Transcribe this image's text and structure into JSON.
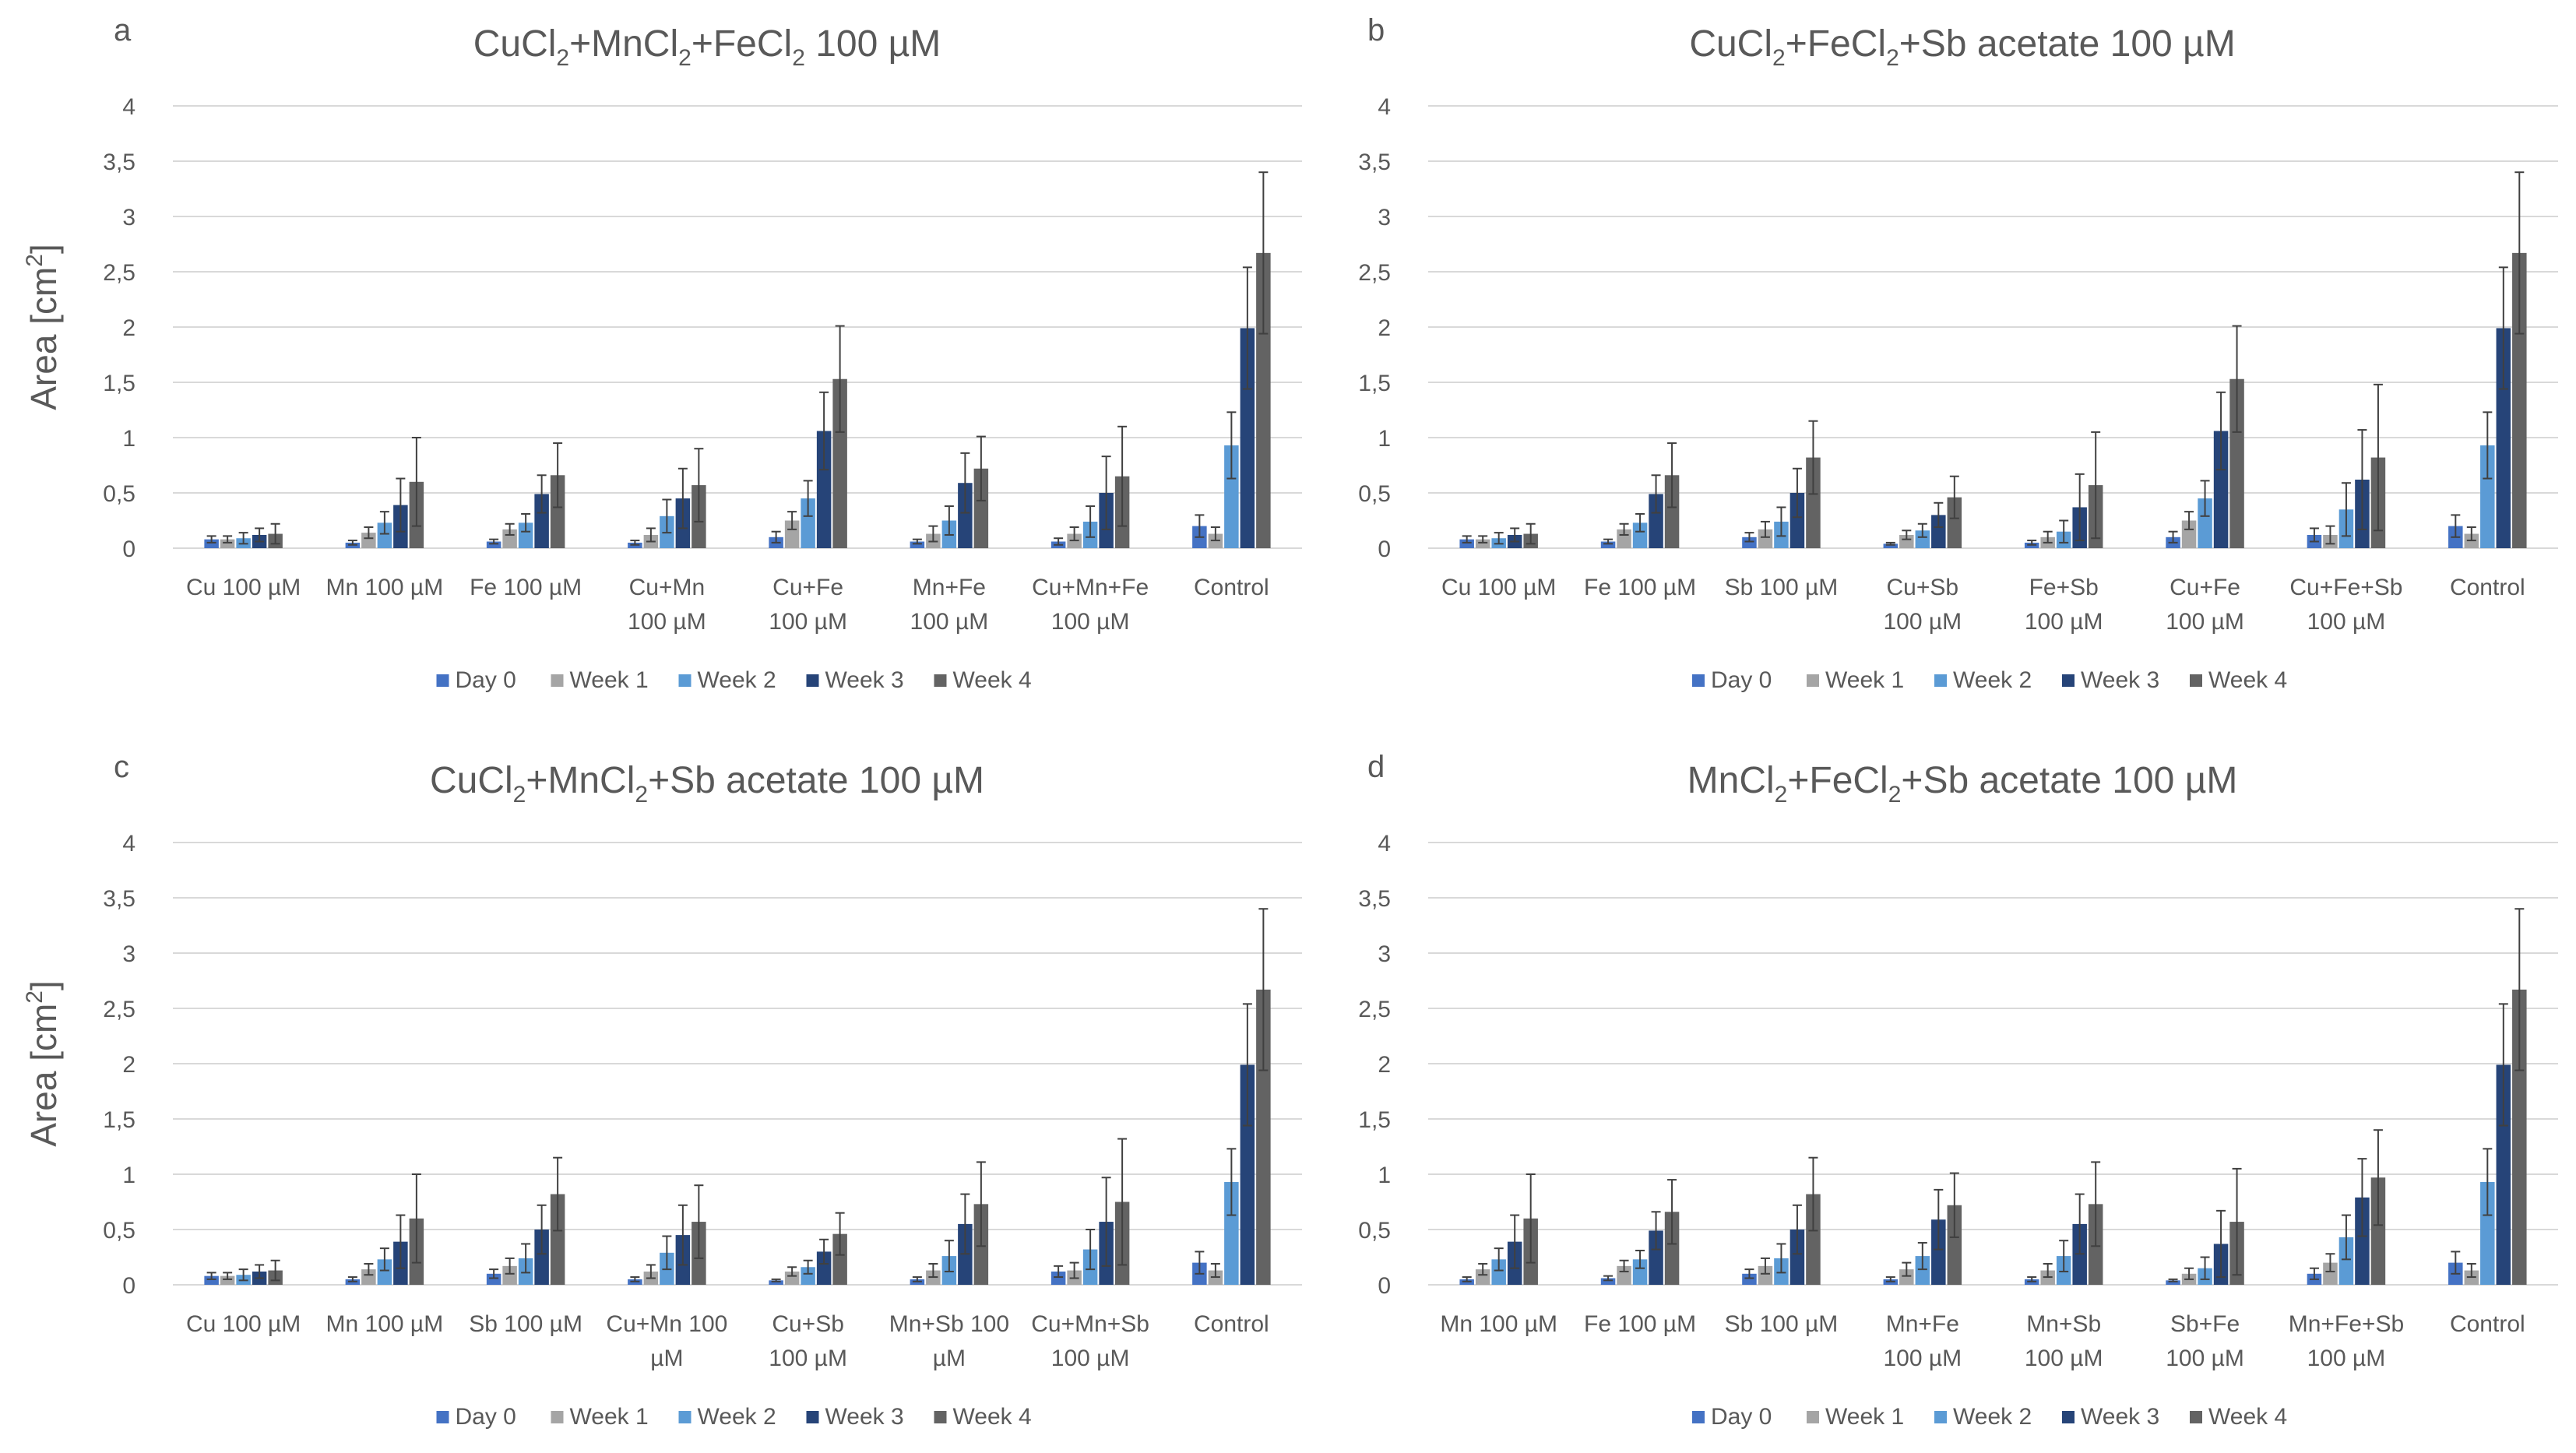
{
  "colors": {
    "Day 0": "#4472c4",
    "Week 1": "#a5a5a5",
    "Week 2": "#5b9bd5",
    "Week 3": "#264478",
    "Week 4": "#636363",
    "grid": "#d9d9d9",
    "text": "#595959",
    "errorbar": "#404040"
  },
  "chart_data": [
    {
      "panel_letter": "a",
      "type": "bar",
      "title": "CuCl2+MnCl2+FeCl2 100 µM",
      "title_parts": [
        {
          "t": "CuCl"
        },
        {
          "t": "2",
          "sub": true
        },
        {
          "t": "+MnCl"
        },
        {
          "t": "2",
          "sub": true
        },
        {
          "t": "+FeCl"
        },
        {
          "t": "2",
          "sub": true
        },
        {
          "t": " 100 µM"
        }
      ],
      "ylabel": "Area [cm²]",
      "ylabel_parts": [
        {
          "t": "Area [cm"
        },
        {
          "t": "2",
          "sup": true
        },
        {
          "t": "]"
        }
      ],
      "ylim": [
        0,
        4
      ],
      "yticks": [
        "0",
        "0,5",
        "1",
        "1,5",
        "2",
        "2,5",
        "3",
        "3,5",
        "4"
      ],
      "grid": true,
      "legend": "bottom",
      "categories": [
        [
          "Cu 100 µM"
        ],
        [
          "Mn 100 µM"
        ],
        [
          "Fe 100 µM"
        ],
        [
          "Cu+Mn",
          "100 µM"
        ],
        [
          "Cu+Fe",
          "100 µM"
        ],
        [
          "Mn+Fe",
          "100 µM"
        ],
        [
          "Cu+Mn+Fe",
          "100 µM"
        ],
        [
          "Control"
        ]
      ],
      "series": [
        {
          "name": "Day 0",
          "values": [
            0.08,
            0.05,
            0.06,
            0.05,
            0.1,
            0.06,
            0.06,
            0.2
          ],
          "errors": [
            0.03,
            0.02,
            0.02,
            0.02,
            0.05,
            0.02,
            0.03,
            0.1
          ]
        },
        {
          "name": "Week 1",
          "values": [
            0.08,
            0.14,
            0.17,
            0.12,
            0.25,
            0.13,
            0.13,
            0.13
          ],
          "errors": [
            0.03,
            0.05,
            0.05,
            0.06,
            0.08,
            0.07,
            0.06,
            0.06
          ]
        },
        {
          "name": "Week 2",
          "values": [
            0.09,
            0.23,
            0.23,
            0.29,
            0.45,
            0.25,
            0.24,
            0.93
          ],
          "errors": [
            0.05,
            0.1,
            0.08,
            0.15,
            0.16,
            0.13,
            0.14,
            0.3
          ]
        },
        {
          "name": "Week 3",
          "values": [
            0.12,
            0.39,
            0.49,
            0.45,
            1.06,
            0.59,
            0.5,
            1.99
          ],
          "errors": [
            0.06,
            0.24,
            0.17,
            0.27,
            0.35,
            0.27,
            0.33,
            0.55
          ]
        },
        {
          "name": "Week 4",
          "values": [
            0.13,
            0.6,
            0.66,
            0.57,
            1.53,
            0.72,
            0.65,
            2.67
          ],
          "errors": [
            0.09,
            0.4,
            0.29,
            0.33,
            0.48,
            0.29,
            0.45,
            0.73
          ]
        }
      ]
    },
    {
      "panel_letter": "b",
      "type": "bar",
      "title": "CuCl2+FeCl2+Sb acetate 100 µM",
      "title_parts": [
        {
          "t": "CuCl"
        },
        {
          "t": "2",
          "sub": true
        },
        {
          "t": "+FeCl"
        },
        {
          "t": "2",
          "sub": true
        },
        {
          "t": "+Sb acetate 100 µM"
        }
      ],
      "ylabel": "",
      "ylabel_parts": [],
      "ylim": [
        0,
        4
      ],
      "yticks": [
        "0",
        "0,5",
        "1",
        "1,5",
        "2",
        "2,5",
        "3",
        "3,5",
        "4"
      ],
      "grid": true,
      "legend": "bottom",
      "categories": [
        [
          "Cu 100 µM"
        ],
        [
          "Fe 100 µM"
        ],
        [
          "Sb 100 µM"
        ],
        [
          "Cu+Sb",
          "100 µM"
        ],
        [
          "Fe+Sb",
          "100 µM"
        ],
        [
          "Cu+Fe",
          "100 µM"
        ],
        [
          "Cu+Fe+Sb",
          "100 µM"
        ],
        [
          "Control"
        ]
      ],
      "series": [
        {
          "name": "Day 0",
          "values": [
            0.08,
            0.06,
            0.1,
            0.04,
            0.05,
            0.1,
            0.12,
            0.2
          ],
          "errors": [
            0.03,
            0.02,
            0.04,
            0.01,
            0.02,
            0.05,
            0.06,
            0.1
          ]
        },
        {
          "name": "Week 1",
          "values": [
            0.08,
            0.17,
            0.17,
            0.12,
            0.1,
            0.25,
            0.12,
            0.13
          ],
          "errors": [
            0.03,
            0.05,
            0.07,
            0.04,
            0.05,
            0.08,
            0.08,
            0.06
          ]
        },
        {
          "name": "Week 2",
          "values": [
            0.09,
            0.23,
            0.24,
            0.16,
            0.15,
            0.45,
            0.35,
            0.93
          ],
          "errors": [
            0.05,
            0.08,
            0.13,
            0.06,
            0.1,
            0.16,
            0.24,
            0.3
          ]
        },
        {
          "name": "Week 3",
          "values": [
            0.12,
            0.49,
            0.5,
            0.3,
            0.37,
            1.06,
            0.62,
            1.99
          ],
          "errors": [
            0.06,
            0.17,
            0.22,
            0.11,
            0.3,
            0.35,
            0.45,
            0.55
          ]
        },
        {
          "name": "Week 4",
          "values": [
            0.13,
            0.66,
            0.82,
            0.46,
            0.57,
            1.53,
            0.82,
            2.67
          ],
          "errors": [
            0.09,
            0.29,
            0.33,
            0.19,
            0.48,
            0.48,
            0.66,
            0.73
          ]
        }
      ]
    },
    {
      "panel_letter": "c",
      "type": "bar",
      "title": "CuCl2+MnCl2+Sb acetate 100 µM",
      "title_parts": [
        {
          "t": "CuCl"
        },
        {
          "t": "2",
          "sub": true
        },
        {
          "t": "+MnCl"
        },
        {
          "t": "2",
          "sub": true
        },
        {
          "t": "+Sb acetate 100 µM"
        }
      ],
      "ylabel": "Area [cm²]",
      "ylabel_parts": [
        {
          "t": "Area [cm"
        },
        {
          "t": "2",
          "sup": true
        },
        {
          "t": "]"
        }
      ],
      "ylim": [
        0,
        4
      ],
      "yticks": [
        "0",
        "0,5",
        "1",
        "1,5",
        "2",
        "2,5",
        "3",
        "3,5",
        "4"
      ],
      "grid": true,
      "legend": "bottom",
      "categories": [
        [
          "Cu 100 µM"
        ],
        [
          "Mn 100 µM"
        ],
        [
          "Sb 100 µM"
        ],
        [
          "Cu+Mn 100",
          "µM"
        ],
        [
          "Cu+Sb",
          "100 µM"
        ],
        [
          "Mn+Sb 100",
          "µM"
        ],
        [
          "Cu+Mn+Sb",
          "100 µM"
        ],
        [
          "Control"
        ]
      ],
      "series": [
        {
          "name": "Day 0",
          "values": [
            0.08,
            0.05,
            0.1,
            0.05,
            0.04,
            0.05,
            0.12,
            0.2
          ],
          "errors": [
            0.03,
            0.02,
            0.04,
            0.02,
            0.01,
            0.02,
            0.05,
            0.1
          ]
        },
        {
          "name": "Week 1",
          "values": [
            0.08,
            0.14,
            0.17,
            0.12,
            0.12,
            0.13,
            0.13,
            0.13
          ],
          "errors": [
            0.03,
            0.05,
            0.07,
            0.06,
            0.04,
            0.06,
            0.07,
            0.06
          ]
        },
        {
          "name": "Week 2",
          "values": [
            0.09,
            0.23,
            0.24,
            0.29,
            0.16,
            0.26,
            0.32,
            0.93
          ],
          "errors": [
            0.05,
            0.1,
            0.13,
            0.15,
            0.06,
            0.14,
            0.18,
            0.3
          ]
        },
        {
          "name": "Week 3",
          "values": [
            0.12,
            0.39,
            0.5,
            0.45,
            0.3,
            0.55,
            0.57,
            1.99
          ],
          "errors": [
            0.06,
            0.24,
            0.22,
            0.27,
            0.11,
            0.27,
            0.4,
            0.55
          ]
        },
        {
          "name": "Week 4",
          "values": [
            0.13,
            0.6,
            0.82,
            0.57,
            0.46,
            0.73,
            0.75,
            2.67
          ],
          "errors": [
            0.09,
            0.4,
            0.33,
            0.33,
            0.19,
            0.38,
            0.57,
            0.73
          ]
        }
      ]
    },
    {
      "panel_letter": "d",
      "type": "bar",
      "title": "MnCl2+FeCl2+Sb acetate 100 µM",
      "title_parts": [
        {
          "t": "MnCl"
        },
        {
          "t": "2",
          "sub": true
        },
        {
          "t": "+FeCl"
        },
        {
          "t": "2",
          "sub": true
        },
        {
          "t": "+Sb acetate 100 µM"
        }
      ],
      "ylabel": "",
      "ylabel_parts": [],
      "ylim": [
        0,
        4
      ],
      "yticks": [
        "0",
        "0,5",
        "1",
        "1,5",
        "2",
        "2,5",
        "3",
        "3,5",
        "4"
      ],
      "grid": true,
      "legend": "bottom",
      "categories": [
        [
          "Mn 100 µM"
        ],
        [
          "Fe 100 µM"
        ],
        [
          "Sb 100 µM"
        ],
        [
          "Mn+Fe",
          "100 µM"
        ],
        [
          "Mn+Sb",
          "100 µM"
        ],
        [
          "Sb+Fe",
          "100 µM"
        ],
        [
          "Mn+Fe+Sb",
          "100 µM"
        ],
        [
          "Control"
        ]
      ],
      "series": [
        {
          "name": "Day 0",
          "values": [
            0.05,
            0.06,
            0.1,
            0.05,
            0.05,
            0.04,
            0.1,
            0.2
          ],
          "errors": [
            0.02,
            0.02,
            0.04,
            0.02,
            0.02,
            0.01,
            0.05,
            0.1
          ]
        },
        {
          "name": "Week 1",
          "values": [
            0.14,
            0.17,
            0.17,
            0.14,
            0.13,
            0.1,
            0.2,
            0.13
          ],
          "errors": [
            0.05,
            0.05,
            0.07,
            0.06,
            0.06,
            0.05,
            0.08,
            0.06
          ]
        },
        {
          "name": "Week 2",
          "values": [
            0.23,
            0.23,
            0.24,
            0.26,
            0.26,
            0.15,
            0.43,
            0.93
          ],
          "errors": [
            0.1,
            0.08,
            0.13,
            0.12,
            0.14,
            0.1,
            0.2,
            0.3
          ]
        },
        {
          "name": "Week 3",
          "values": [
            0.39,
            0.49,
            0.5,
            0.59,
            0.55,
            0.37,
            0.79,
            1.99
          ],
          "errors": [
            0.24,
            0.17,
            0.22,
            0.27,
            0.27,
            0.3,
            0.35,
            0.55
          ]
        },
        {
          "name": "Week 4",
          "values": [
            0.6,
            0.66,
            0.82,
            0.72,
            0.73,
            0.57,
            0.97,
            2.67
          ],
          "errors": [
            0.4,
            0.29,
            0.33,
            0.29,
            0.38,
            0.48,
            0.43,
            0.73
          ]
        }
      ]
    }
  ]
}
